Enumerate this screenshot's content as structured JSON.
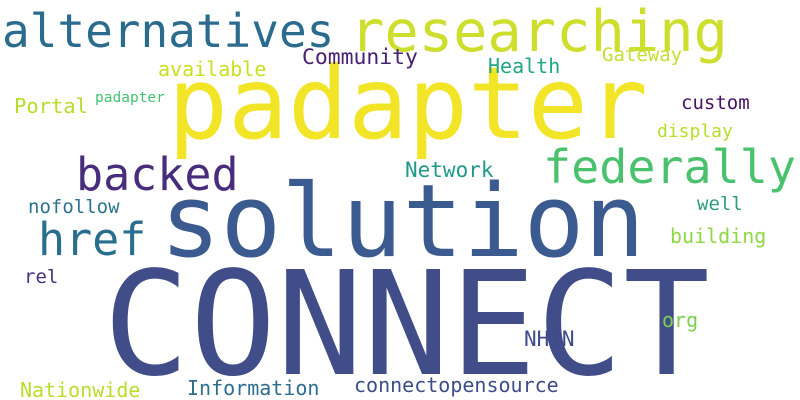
{
  "words": [
    {
      "text": "CONNECT",
      "color": "#414d89"
    },
    {
      "text": "solution",
      "color": "#3b5a8f"
    },
    {
      "text": "padapter",
      "color": "#f2e426"
    },
    {
      "text": "padapter",
      "color": "#44c272"
    },
    {
      "text": "researching",
      "color": "#cdde2c"
    },
    {
      "text": "alternatives",
      "color": "#2b6b8e"
    },
    {
      "text": "federally",
      "color": "#4ac16d"
    },
    {
      "text": "backed",
      "color": "#472d7b"
    },
    {
      "text": "href",
      "color": "#2a6e8e"
    },
    {
      "text": "Community",
      "color": "#482173"
    },
    {
      "text": "available",
      "color": "#c8e020"
    },
    {
      "text": "Health",
      "color": "#21a585"
    },
    {
      "text": "Gateway",
      "color": "#c3df33"
    },
    {
      "text": "Portal",
      "color": "#b5de2b"
    },
    {
      "text": "custom",
      "color": "#471164"
    },
    {
      "text": "display",
      "color": "#b4de2c"
    },
    {
      "text": "Network",
      "color": "#1f9a8a"
    },
    {
      "text": "nofollow",
      "color": "#2c728e"
    },
    {
      "text": "well",
      "color": "#2f9e7f"
    },
    {
      "text": "building",
      "color": "#8fd744"
    },
    {
      "text": "rel",
      "color": "#46327e"
    },
    {
      "text": "org",
      "color": "#7ad151"
    },
    {
      "text": "NHIN",
      "color": "#3e4a89"
    },
    {
      "text": "Nationwide",
      "color": "#b8de29"
    },
    {
      "text": "Information",
      "color": "#2e6d8e"
    },
    {
      "text": "connectopensource",
      "color": "#3d4d8a"
    }
  ]
}
